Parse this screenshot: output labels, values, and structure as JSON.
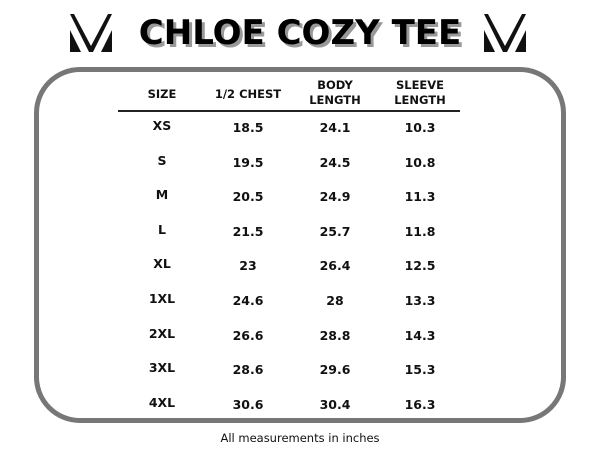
{
  "title": "CHLOE COZY TEE",
  "logo_icon": "v-triangle-logo",
  "table": {
    "headers": [
      "SIZE",
      "1/2 CHEST",
      "BODY\nLENGTH",
      "SLEEVE\nLENGTH"
    ],
    "rows": [
      [
        "XS",
        "18.5",
        "24.1",
        "10.3"
      ],
      [
        "S",
        "19.5",
        "24.5",
        "10.8"
      ],
      [
        "M",
        "20.5",
        "24.9",
        "11.3"
      ],
      [
        "L",
        "21.5",
        "25.7",
        "11.8"
      ],
      [
        "XL",
        "23",
        "26.4",
        "12.5"
      ],
      [
        "1XL",
        "24.6",
        "28",
        "13.3"
      ],
      [
        "2XL",
        "26.6",
        "28.8",
        "14.3"
      ],
      [
        "3XL",
        "28.6",
        "29.6",
        "15.3"
      ],
      [
        "4XL",
        "30.6",
        "30.4",
        "16.3"
      ]
    ]
  },
  "footnote": "All measurements in inches",
  "colors": {
    "border": "#777777",
    "title_shadow": "#999999"
  }
}
